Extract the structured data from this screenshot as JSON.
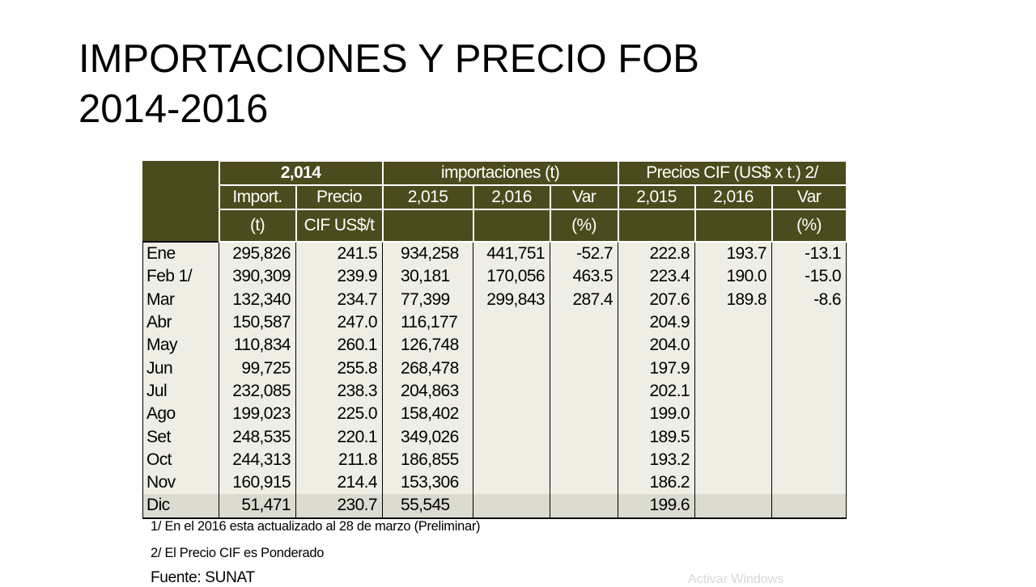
{
  "title": {
    "line1": "IMPORTACIONES Y PRECIO FOB",
    "line2": "2014-2016"
  },
  "table": {
    "group_headers": {
      "year2014": "2,014",
      "importaciones": "importaciones (t)",
      "precios": "Precios CIF (US$ x t.) 2/"
    },
    "sub_headers": {
      "import": "Import.",
      "precio": "Precio",
      "imp_2015": "2,015",
      "imp_2016": "2,016",
      "imp_var": "Var",
      "pre_2015": "2,015",
      "pre_2016": "2,016",
      "pre_var": "Var"
    },
    "unit_headers": {
      "import_unit": "(t)",
      "precio_unit": "CIF US$/t",
      "imp_var_unit": "(%)",
      "pre_var_unit": "(%)"
    },
    "rows": [
      {
        "month": "Ene",
        "import_2014": "295,826",
        "precio_2014": "241.5",
        "imp_2015": "934,258",
        "imp_2016": "441,751",
        "imp_var": "-52.7",
        "pre_2015": "222.8",
        "pre_2016": "193.7",
        "pre_var": "-13.1"
      },
      {
        "month": "Feb 1/",
        "import_2014": "390,309",
        "precio_2014": "239.9",
        "imp_2015": "30,181",
        "imp_2016": "170,056",
        "imp_var": "463.5",
        "pre_2015": "223.4",
        "pre_2016": "190.0",
        "pre_var": "-15.0"
      },
      {
        "month": "Mar",
        "import_2014": "132,340",
        "precio_2014": "234.7",
        "imp_2015": "77,399",
        "imp_2016": "299,843",
        "imp_var": "287.4",
        "pre_2015": "207.6",
        "pre_2016": "189.8",
        "pre_var": "-8.6"
      },
      {
        "month": "Abr",
        "import_2014": "150,587",
        "precio_2014": "247.0",
        "imp_2015": "116,177",
        "imp_2016": "",
        "imp_var": "",
        "pre_2015": "204.9",
        "pre_2016": "",
        "pre_var": ""
      },
      {
        "month": "May",
        "import_2014": "110,834",
        "precio_2014": "260.1",
        "imp_2015": "126,748",
        "imp_2016": "",
        "imp_var": "",
        "pre_2015": "204.0",
        "pre_2016": "",
        "pre_var": ""
      },
      {
        "month": "Jun",
        "import_2014": "99,725",
        "precio_2014": "255.8",
        "imp_2015": "268,478",
        "imp_2016": "",
        "imp_var": "",
        "pre_2015": "197.9",
        "pre_2016": "",
        "pre_var": ""
      },
      {
        "month": "Jul",
        "import_2014": "232,085",
        "precio_2014": "238.3",
        "imp_2015": "204,863",
        "imp_2016": "",
        "imp_var": "",
        "pre_2015": "202.1",
        "pre_2016": "",
        "pre_var": ""
      },
      {
        "month": "Ago",
        "import_2014": "199,023",
        "precio_2014": "225.0",
        "imp_2015": "158,402",
        "imp_2016": "",
        "imp_var": "",
        "pre_2015": "199.0",
        "pre_2016": "",
        "pre_var": ""
      },
      {
        "month": "Set",
        "import_2014": "248,535",
        "precio_2014": "220.1",
        "imp_2015": "349,026",
        "imp_2016": "",
        "imp_var": "",
        "pre_2015": "189.5",
        "pre_2016": "",
        "pre_var": ""
      },
      {
        "month": "Oct",
        "import_2014": "244,313",
        "precio_2014": "211.8",
        "imp_2015": "186,855",
        "imp_2016": "",
        "imp_var": "",
        "pre_2015": "193.2",
        "pre_2016": "",
        "pre_var": ""
      },
      {
        "month": "Nov",
        "import_2014": "160,915",
        "precio_2014": "214.4",
        "imp_2015": "153,306",
        "imp_2016": "",
        "imp_var": "",
        "pre_2015": "186.2",
        "pre_2016": "",
        "pre_var": ""
      },
      {
        "month": "Dic",
        "import_2014": "51,471",
        "precio_2014": "230.7",
        "imp_2015": "55,545",
        "imp_2016": "",
        "imp_var": "",
        "pre_2015": "199.6",
        "pre_2016": "",
        "pre_var": ""
      }
    ]
  },
  "notes": {
    "note1": "1/ En el 2016 esta actualizado al 28 de marzo (Preliminar)",
    "note2": "2/ El Precio CIF es Ponderado",
    "source": "Fuente: SUNAT"
  },
  "watermark": "Activar Windows",
  "colors": {
    "header_bg": "#4b4b1d",
    "body_bg": "#efeee5",
    "last_row_bg": "#dcdbcf"
  }
}
